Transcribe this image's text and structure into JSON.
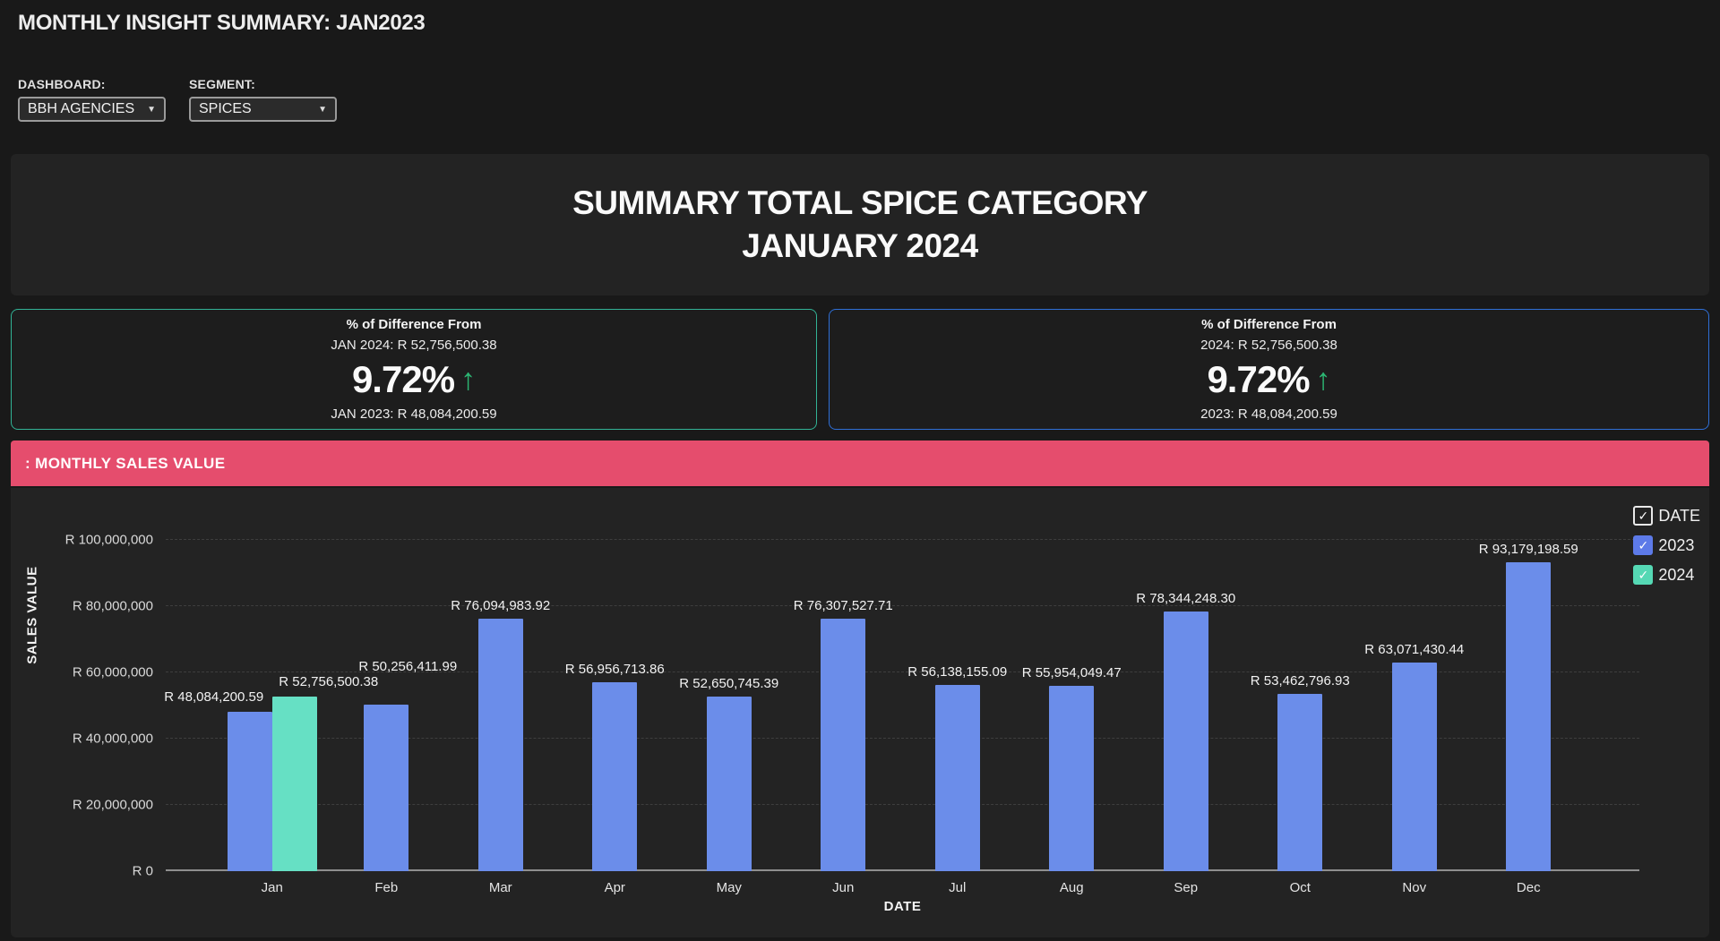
{
  "page": {
    "title": "MONTHLY INSIGHT SUMMARY: JAN2023"
  },
  "filters": {
    "dashboard_label": "DASHBOARD:",
    "dashboard_value": "BBH AGENCIES",
    "segment_label": "SEGMENT:",
    "segment_value": "SPICES",
    "caret": "▼"
  },
  "summary": {
    "title_line1": "SUMMARY TOTAL SPICE CATEGORY",
    "title_line2": "JANUARY 2024"
  },
  "cards": [
    {
      "heading": "% of Difference From",
      "top_line": "JAN 2024: R 52,756,500.38",
      "percent": "9.72%",
      "arrow": "↑",
      "direction": "up",
      "bottom_line": "JAN 2023: R 48,084,200.59",
      "border_color": "#32b396"
    },
    {
      "heading": "% of Difference From",
      "top_line": "2024: R 52,756,500.38",
      "percent": "9.72%",
      "arrow": "↑",
      "direction": "up",
      "bottom_line": "2023: R 48,084,200.59",
      "border_color": "#2f6fd6"
    }
  ],
  "banner": {
    "label": ": MONTHLY SALES VALUE",
    "color": "#e54d6d"
  },
  "chart_data": {
    "type": "bar",
    "title": ": MONTHLY SALES VALUE",
    "xlabel": "DATE",
    "ylabel": "SALES VALUE",
    "ylim": [
      0,
      100000000
    ],
    "ytick_step": 20000000,
    "grid": "dashed horizontal",
    "legend_position": "top-right",
    "currency_prefix": "R",
    "ytick_labels": [
      "R 0",
      "R 20,000,000",
      "R 40,000,000",
      "R 60,000,000",
      "R 80,000,000",
      "R 100,000,000"
    ],
    "categories": [
      "Jan",
      "Feb",
      "Mar",
      "Apr",
      "May",
      "Jun",
      "Jul",
      "Aug",
      "Sep",
      "Oct",
      "Nov",
      "Dec"
    ],
    "series": [
      {
        "name": "2023",
        "color": "#6b8dea",
        "values": [
          48084200.59,
          50256411.99,
          76094983.92,
          56956713.86,
          52650745.39,
          76307527.71,
          56138155.09,
          55954049.47,
          78344248.3,
          53462796.93,
          63071430.44,
          93179198.59
        ],
        "labels": [
          "R 48,084,200.59",
          "R 50,256,411.99",
          "R 76,094,983.92",
          "R 56,956,713.86",
          "R 52,650,745.39",
          "R 76,307,527.71",
          "R 56,138,155.09",
          "R 55,954,049.47",
          "R 78,344,248.30",
          "R 53,462,796.93",
          "R 63,071,430.44",
          "R 93,179,198.59"
        ]
      },
      {
        "name": "2024",
        "color": "#66e0c4",
        "values": [
          52756500.38,
          null,
          null,
          null,
          null,
          null,
          null,
          null,
          null,
          null,
          null,
          null
        ],
        "labels": [
          "R 52,756,500.38",
          null,
          null,
          null,
          null,
          null,
          null,
          null,
          null,
          null,
          null,
          null
        ]
      }
    ],
    "legend": [
      {
        "label": "DATE",
        "swatch": "outline",
        "checked": true
      },
      {
        "label": "2023",
        "swatch": "#5d7ae8",
        "checked": true
      },
      {
        "label": "2024",
        "swatch": "#55d8b4",
        "checked": true
      }
    ],
    "check_glyph": "✓"
  }
}
